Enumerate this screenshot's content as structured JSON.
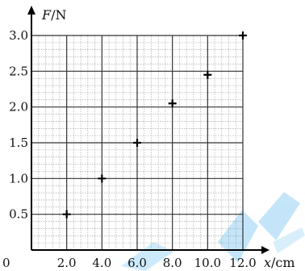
{
  "chart_data": {
    "type": "scatter",
    "x_axis": {
      "variable": "x",
      "unit": "cm",
      "range": [
        0,
        12.0
      ],
      "tick_labels": [
        "2.0",
        "4.0",
        "6.0",
        "8.0",
        "10.0",
        "12.0"
      ],
      "tick_values": [
        2.0,
        4.0,
        6.0,
        8.0,
        10.0,
        12.0
      ]
    },
    "y_axis": {
      "variable": "F",
      "unit": "N",
      "range": [
        0,
        3.0
      ],
      "tick_labels": [
        "0.5",
        "1.0",
        "1.5",
        "2.0",
        "2.5",
        "3.0"
      ],
      "tick_values": [
        0.5,
        1.0,
        1.5,
        2.0,
        2.5,
        3.0
      ]
    },
    "origin_label": "0",
    "grid": "on",
    "points": [
      {
        "x": 2.0,
        "y": 0.5
      },
      {
        "x": 4.0,
        "y": 1.0
      },
      {
        "x": 6.0,
        "y": 1.5
      },
      {
        "x": 8.0,
        "y": 2.05
      },
      {
        "x": 10.0,
        "y": 2.45
      },
      {
        "x": 12.0,
        "y": 3.0
      }
    ],
    "colors": {
      "grid_major": "#333333",
      "grid_minor": "#9a9a9a",
      "points": "#000000",
      "watermark": "#63b7ea"
    }
  }
}
